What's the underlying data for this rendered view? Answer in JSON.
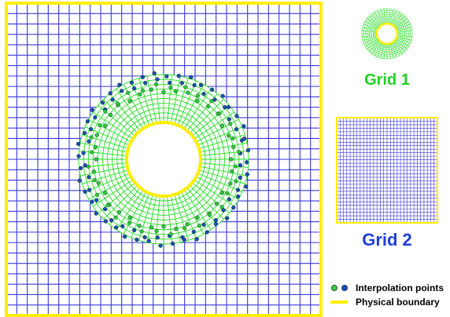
{
  "labels": {
    "grid1": "Grid 1",
    "grid2": "Grid 2"
  },
  "legend": {
    "interpolation": "Interpolation points",
    "boundary": "Physical boundary"
  },
  "colors": {
    "background_grid": "#3a3ad8",
    "annulus_grid": "#22dd22",
    "boundary": "#ffee00",
    "point_green": "#2ecc40",
    "point_blue": "#1a4fb8",
    "grid1_label": "#1fd21f",
    "grid2_label": "#1f3fd8"
  }
}
